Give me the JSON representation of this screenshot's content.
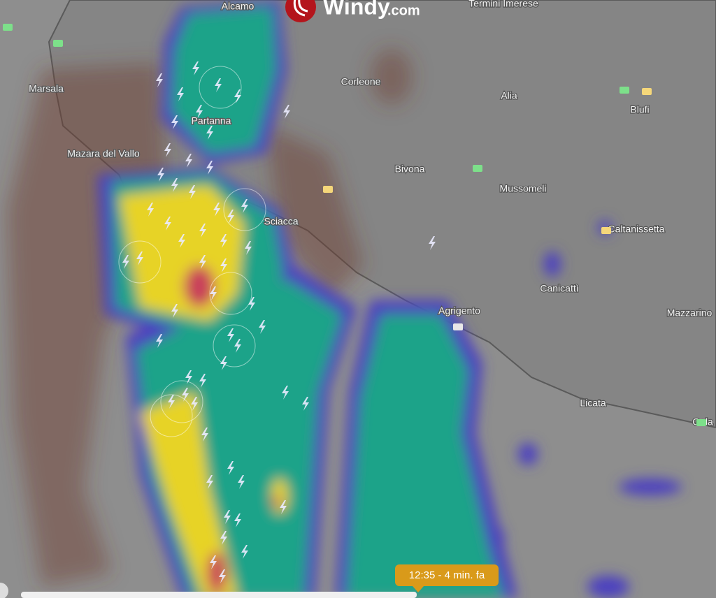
{
  "logo": {
    "name": "Windy",
    "domain": ".com"
  },
  "places": [
    "Alcamo",
    "Termini Imerese",
    "Marsala",
    "Corleone",
    "Alia",
    "Blufi",
    "Partanna",
    "Mazara del Vallo",
    "Bivona",
    "Mussomeli",
    "Sciacca",
    "Caltanissetta",
    "Canicattì",
    "Agrigento",
    "Mazzarino",
    "Licata",
    "Gela"
  ],
  "timeline": {
    "time_label": "12:35 - 4 min. fa"
  }
}
